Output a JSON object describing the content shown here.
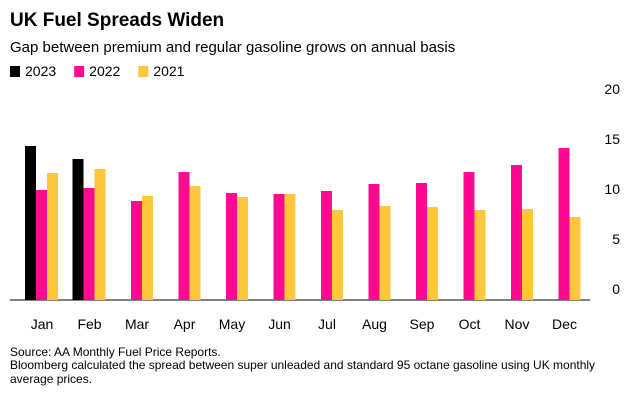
{
  "chart_data": {
    "type": "bar",
    "title": "UK Fuel Spreads Widen",
    "subtitle": "Gap between premium and regular gasoline grows on annual basis",
    "categories": [
      "Jan",
      "Feb",
      "Mar",
      "Apr",
      "May",
      "Jun",
      "Jul",
      "Aug",
      "Sep",
      "Oct",
      "Nov",
      "Dec"
    ],
    "series": [
      {
        "name": "2023",
        "color": "#000000",
        "values": [
          15.4,
          14.1,
          null,
          null,
          null,
          null,
          null,
          null,
          null,
          null,
          null,
          null
        ]
      },
      {
        "name": "2022",
        "color": "#ff0a91",
        "values": [
          11.0,
          11.2,
          9.9,
          12.8,
          10.7,
          10.6,
          10.9,
          11.6,
          11.7,
          12.8,
          13.5,
          15.2
        ]
      },
      {
        "name": "2021",
        "color": "#ffc83c",
        "values": [
          12.7,
          13.1,
          10.4,
          11.4,
          10.3,
          10.6,
          9.0,
          9.4,
          9.3,
          9.0,
          9.1,
          8.3
        ]
      }
    ],
    "ylim": [
      0,
      20
    ],
    "yticks": [
      0,
      5,
      10,
      15,
      20
    ],
    "source": "Source: AA Monthly Fuel Price Reports.",
    "note": "Bloomberg calculated the spread between super unleaded and standard 95 octane gasoline using UK monthly average prices."
  }
}
